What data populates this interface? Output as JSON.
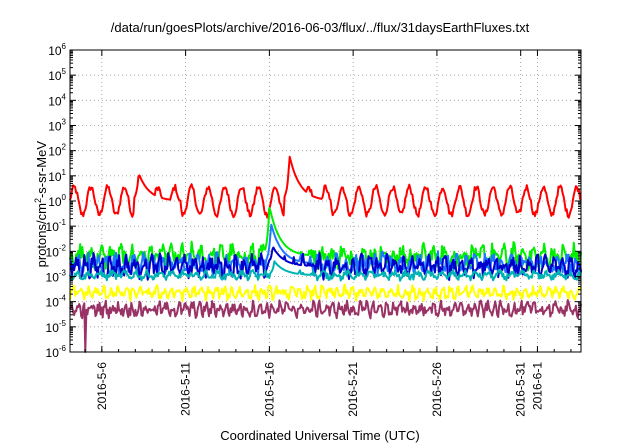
{
  "chart_data": {
    "type": "line",
    "title": "/data/run/goesPlots/archive/2016-06-03/flux/../flux/31daysEarthFluxes.txt",
    "xlabel": "Coordinated Universal Time (UTC)",
    "ylabel_main": "protons/cm",
    "ylabel_sup": "2",
    "ylabel_rest": "-s-sr-MeV",
    "yscale": "log",
    "ylim_exp": [
      -6,
      6
    ],
    "y_ticks": [
      {
        "base": "10",
        "exp": "-6"
      },
      {
        "base": "10",
        "exp": "-5"
      },
      {
        "base": "10",
        "exp": "-4"
      },
      {
        "base": "10",
        "exp": "-3"
      },
      {
        "base": "10",
        "exp": "-2"
      },
      {
        "base": "10",
        "exp": "-1"
      },
      {
        "base": "10",
        "exp": "0"
      },
      {
        "base": "10",
        "exp": "1"
      },
      {
        "base": "10",
        "exp": "2"
      },
      {
        "base": "10",
        "exp": "3"
      },
      {
        "base": "10",
        "exp": "4"
      },
      {
        "base": "10",
        "exp": "5"
      },
      {
        "base": "10",
        "exp": "6"
      }
    ],
    "xlim_days": [
      0,
      30.5
    ],
    "x_ticks": [
      {
        "label": "2016-5-6",
        "day": 1.9
      },
      {
        "label": "2016-5-11",
        "day": 6.9
      },
      {
        "label": "2016-5-16",
        "day": 11.9
      },
      {
        "label": "2016-5-21",
        "day": 16.9
      },
      {
        "label": "2016-5-26",
        "day": 21.9
      },
      {
        "label": "2016-5-31",
        "day": 26.9
      },
      {
        "label": "2016-6-1",
        "day": 27.9
      }
    ],
    "grid": true,
    "series": [
      {
        "color": "#ff0000",
        "base_log": 0.0,
        "amp": 0.55,
        "noise": 0.12,
        "period": 1.0,
        "events": [
          {
            "day": 13.1,
            "peak_log": 1.8
          },
          {
            "day": 4.1,
            "peak_log": 1.1
          }
        ]
      },
      {
        "color": "#00ee00",
        "base_log": -2.2,
        "amp": 0.25,
        "noise": 0.35,
        "period": 0.6,
        "events": [
          {
            "day": 11.9,
            "peak_log": -0.2
          }
        ]
      },
      {
        "color": "#1e78ff",
        "base_log": -2.5,
        "amp": 0.2,
        "noise": 0.3,
        "period": 0.55,
        "events": [
          {
            "day": 12.0,
            "peak_log": -0.9
          }
        ]
      },
      {
        "color": "#0000cc",
        "base_log": -2.6,
        "amp": 0.25,
        "noise": 0.3,
        "period": 0.5,
        "events": [
          {
            "day": 12.1,
            "peak_log": -1.8
          }
        ]
      },
      {
        "color": "#00b3b3",
        "base_log": -2.95,
        "amp": 0.1,
        "noise": 0.12,
        "period": 0.7,
        "events": [
          {
            "day": 12.2,
            "peak_log": -2.4
          }
        ]
      },
      {
        "color": "#ffff00",
        "base_log": -3.65,
        "amp": 0.15,
        "noise": 0.18,
        "period": 0.45,
        "events": []
      },
      {
        "color": "#993366",
        "base_log": -4.3,
        "amp": 0.15,
        "noise": 0.22,
        "period": 0.4,
        "events": [],
        "dropout": {
          "day": 0.9,
          "to_log": -6
        }
      }
    ]
  }
}
